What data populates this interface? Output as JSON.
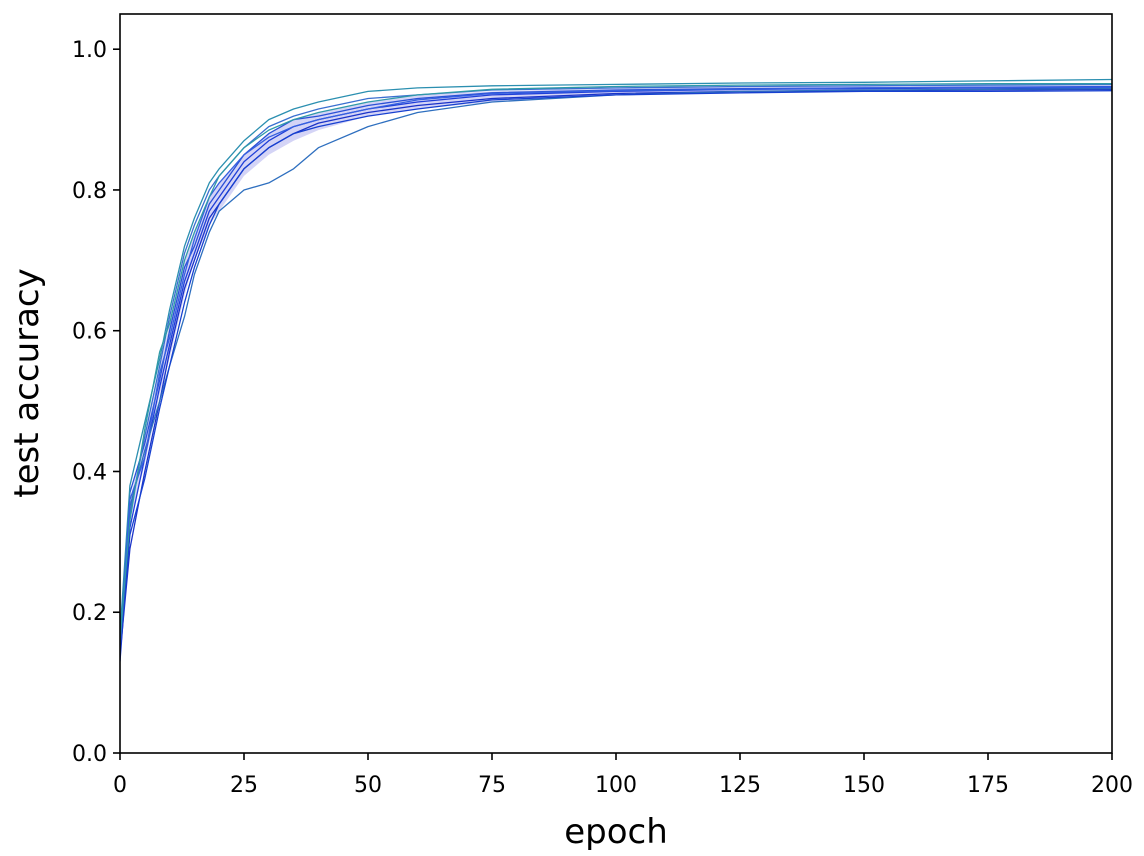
{
  "chart_data": {
    "type": "line",
    "title": "",
    "xlabel": "epoch",
    "ylabel": "test accuracy",
    "xlim": [
      0,
      200
    ],
    "ylim": [
      0,
      1.05
    ],
    "grid": false,
    "legend": "none",
    "x_ticks": [
      0,
      25,
      50,
      75,
      100,
      125,
      150,
      175,
      200
    ],
    "x_tick_labels": [
      "0",
      "25",
      "50",
      "75",
      "100",
      "125",
      "150",
      "175",
      "200"
    ],
    "y_ticks": [
      0.0,
      0.2,
      0.4,
      0.6,
      0.8,
      1.0
    ],
    "y_tick_labels": [
      "0.0",
      "0.2",
      "0.4",
      "0.6",
      "0.8",
      "1.0"
    ],
    "band": {
      "color": "#7070e0",
      "x": [
        0,
        2,
        5,
        8,
        10,
        13,
        15,
        18,
        20,
        25,
        30,
        35,
        40,
        50,
        60,
        75,
        100,
        125,
        150,
        175,
        200
      ],
      "lower": [
        0.14,
        0.33,
        0.41,
        0.51,
        0.56,
        0.65,
        0.7,
        0.75,
        0.77,
        0.82,
        0.85,
        0.87,
        0.885,
        0.905,
        0.915,
        0.925,
        0.935,
        0.938,
        0.94,
        0.941,
        0.942
      ],
      "upper": [
        0.16,
        0.36,
        0.45,
        0.55,
        0.61,
        0.7,
        0.74,
        0.79,
        0.81,
        0.85,
        0.88,
        0.9,
        0.91,
        0.925,
        0.935,
        0.94,
        0.945,
        0.947,
        0.948,
        0.949,
        0.95
      ]
    },
    "series": [
      {
        "color": "#1f3fd8",
        "x": [
          0,
          2,
          5,
          8,
          10,
          13,
          15,
          18,
          20,
          25,
          30,
          35,
          40,
          50,
          60,
          75,
          100,
          125,
          150,
          175,
          200
        ],
        "values": [
          0.13,
          0.32,
          0.42,
          0.52,
          0.58,
          0.67,
          0.71,
          0.77,
          0.79,
          0.84,
          0.87,
          0.89,
          0.9,
          0.915,
          0.925,
          0.935,
          0.94,
          0.943,
          0.944,
          0.945,
          0.945
        ]
      },
      {
        "color": "#2a50d6",
        "x": [
          0,
          2,
          5,
          8,
          10,
          13,
          15,
          18,
          20,
          25,
          30,
          35,
          40,
          50,
          60,
          75,
          100,
          125,
          150,
          175,
          200
        ],
        "values": [
          0.15,
          0.37,
          0.44,
          0.53,
          0.6,
          0.69,
          0.72,
          0.78,
          0.8,
          0.85,
          0.88,
          0.9,
          0.905,
          0.92,
          0.93,
          0.938,
          0.942,
          0.944,
          0.945,
          0.946,
          0.947
        ]
      },
      {
        "color": "#1a33c8",
        "x": [
          0,
          2,
          5,
          8,
          10,
          13,
          15,
          18,
          20,
          25,
          30,
          35,
          40,
          50,
          60,
          75,
          100,
          125,
          150,
          175,
          200
        ],
        "values": [
          0.14,
          0.29,
          0.4,
          0.5,
          0.57,
          0.66,
          0.7,
          0.76,
          0.78,
          0.83,
          0.86,
          0.88,
          0.895,
          0.91,
          0.92,
          0.93,
          0.937,
          0.94,
          0.941,
          0.942,
          0.943
        ]
      },
      {
        "color": "#3a6fd0",
        "x": [
          0,
          2,
          5,
          8,
          10,
          13,
          15,
          18,
          20,
          25,
          30,
          35,
          40,
          50,
          60,
          75,
          100,
          125,
          150,
          175,
          200
        ],
        "values": [
          0.16,
          0.34,
          0.45,
          0.55,
          0.62,
          0.71,
          0.75,
          0.8,
          0.82,
          0.86,
          0.89,
          0.905,
          0.915,
          0.93,
          0.935,
          0.942,
          0.945,
          0.947,
          0.948,
          0.949,
          0.95
        ]
      },
      {
        "color": "#2e6fbf",
        "x": [
          0,
          2,
          5,
          8,
          10,
          13,
          15,
          18,
          20,
          25,
          30,
          35,
          40,
          50,
          60,
          75,
          100,
          125,
          150,
          175,
          200
        ],
        "values": [
          0.15,
          0.35,
          0.43,
          0.5,
          0.55,
          0.62,
          0.68,
          0.74,
          0.77,
          0.8,
          0.81,
          0.83,
          0.86,
          0.89,
          0.91,
          0.925,
          0.935,
          0.94,
          0.942,
          0.943,
          0.944
        ]
      },
      {
        "color": "#2b8fb0",
        "x": [
          0,
          2,
          5,
          8,
          10,
          13,
          15,
          18,
          20,
          25,
          30,
          35,
          40,
          50,
          60,
          75,
          100,
          125,
          150,
          175,
          200
        ],
        "values": [
          0.17,
          0.38,
          0.47,
          0.56,
          0.63,
          0.72,
          0.76,
          0.81,
          0.83,
          0.87,
          0.9,
          0.915,
          0.925,
          0.94,
          0.945,
          0.948,
          0.95,
          0.952,
          0.953,
          0.955,
          0.957
        ]
      },
      {
        "color": "#1740d0",
        "x": [
          0,
          2,
          5,
          8,
          10,
          13,
          15,
          18,
          20,
          25,
          30,
          35,
          40,
          50,
          60,
          75,
          100,
          125,
          150,
          175,
          200
        ],
        "values": [
          0.14,
          0.31,
          0.39,
          0.49,
          0.55,
          0.64,
          0.69,
          0.75,
          0.78,
          0.83,
          0.86,
          0.88,
          0.89,
          0.905,
          0.915,
          0.928,
          0.935,
          0.938,
          0.94,
          0.94,
          0.941
        ]
      },
      {
        "color": "#3560e0",
        "x": [
          0,
          2,
          5,
          8,
          10,
          13,
          15,
          18,
          20,
          25,
          30,
          35,
          40,
          50,
          60,
          75,
          100,
          125,
          150,
          175,
          200
        ],
        "values": [
          0.15,
          0.36,
          0.42,
          0.54,
          0.59,
          0.68,
          0.73,
          0.79,
          0.81,
          0.85,
          0.875,
          0.89,
          0.9,
          0.915,
          0.928,
          0.937,
          0.941,
          0.943,
          0.945,
          0.946,
          0.946
        ]
      },
      {
        "color": "#2f9aa8",
        "x": [
          0,
          2,
          5,
          8,
          10,
          13,
          15,
          18,
          20,
          25,
          30,
          35,
          40,
          50,
          60,
          75,
          100,
          125,
          150,
          175,
          200
        ],
        "values": [
          0.16,
          0.33,
          0.46,
          0.57,
          0.61,
          0.7,
          0.74,
          0.79,
          0.82,
          0.86,
          0.885,
          0.9,
          0.91,
          0.925,
          0.935,
          0.943,
          0.947,
          0.949,
          0.95,
          0.951,
          0.951
        ]
      }
    ]
  }
}
